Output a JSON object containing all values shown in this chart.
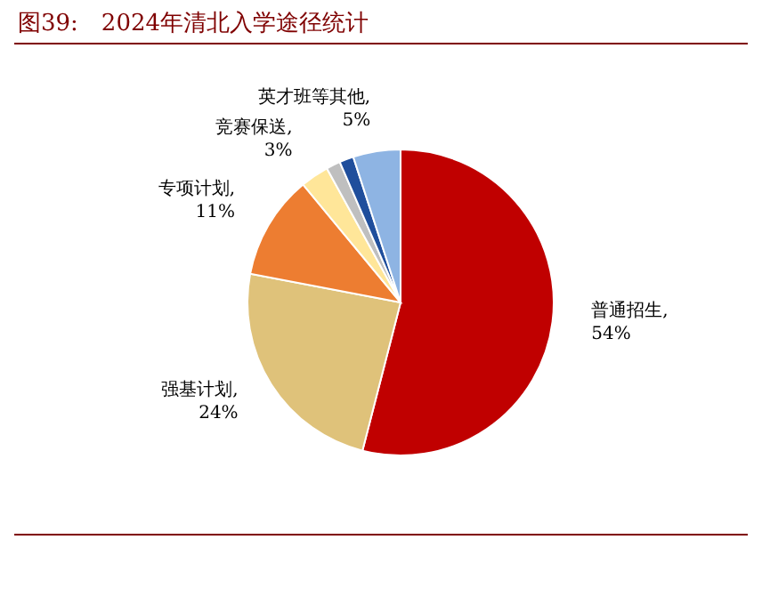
{
  "chart_data": {
    "type": "pie",
    "title": "图39:　2024年清北入学途径统计",
    "categories": [
      "普通招生",
      "强基计划",
      "专项计划",
      "竞赛保送",
      null,
      null,
      "英才班等其他"
    ],
    "values": [
      54,
      24,
      11,
      3,
      1.5,
      1.5,
      5
    ],
    "value_labels": [
      ", 54%",
      ", 24%",
      ", 11%",
      ", 3%",
      null,
      null,
      ", 5%"
    ],
    "colors": [
      "#c00000",
      "#dfc27a",
      "#ed7d31",
      "#ffe699",
      "#bfbfbf",
      "#1f4e9c",
      "#8eb4e3"
    ]
  }
}
